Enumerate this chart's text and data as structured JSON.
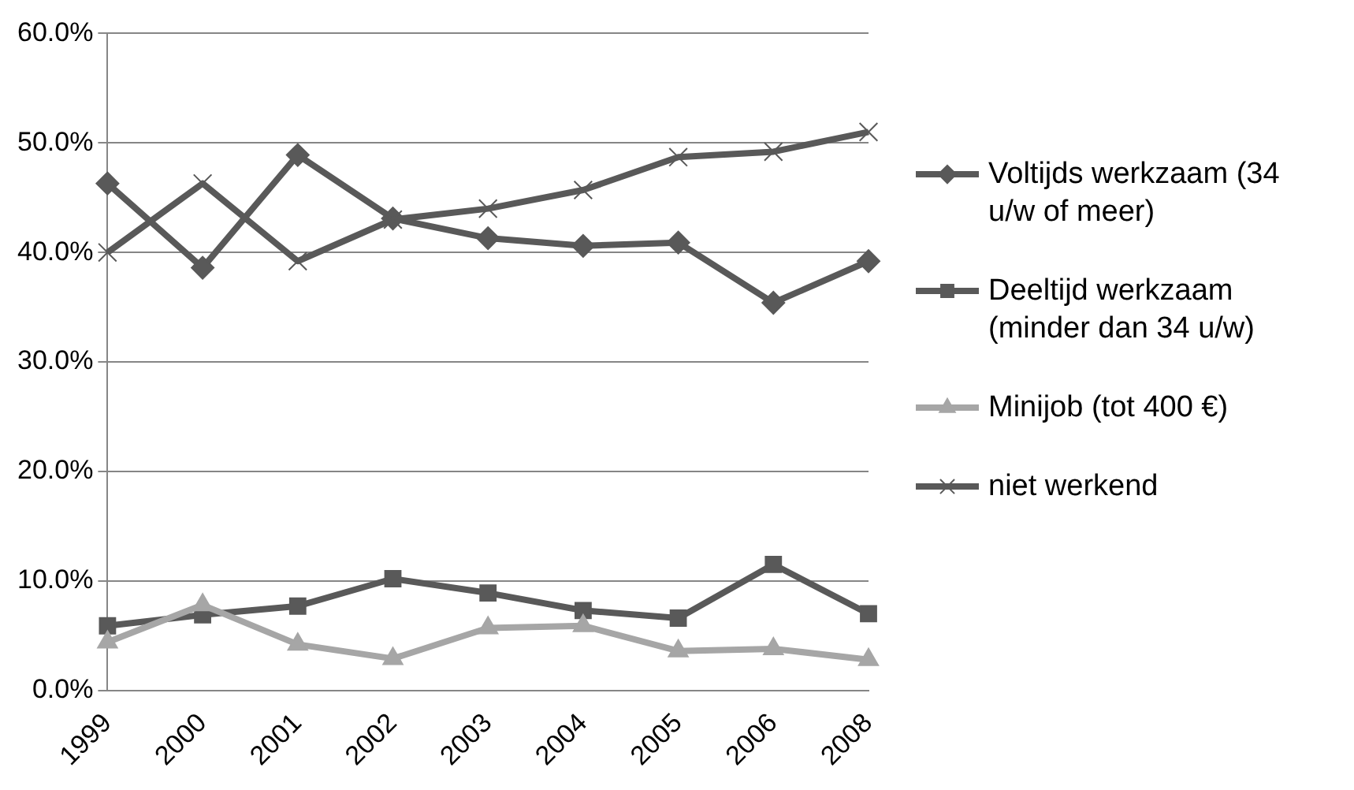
{
  "chart_data": {
    "type": "line",
    "categories": [
      "1999",
      "2000",
      "2001",
      "2002",
      "2003",
      "2004",
      "2005",
      "2006",
      "2008"
    ],
    "series": [
      {
        "name": "Voltijds werkzaam (34 u/w of meer)",
        "color": "#595959",
        "marker": "diamond",
        "values": [
          46.3,
          38.6,
          48.9,
          43.1,
          41.3,
          40.6,
          40.9,
          35.4,
          39.2
        ]
      },
      {
        "name": "Deeltijd werkzaam (minder dan 34 u/w)",
        "color": "#595959",
        "marker": "square",
        "values": [
          5.9,
          6.9,
          7.7,
          10.2,
          8.9,
          7.3,
          6.6,
          11.5,
          7.0
        ]
      },
      {
        "name": "Minijob (tot 400 €)",
        "color": "#a6a6a6",
        "marker": "triangle",
        "values": [
          4.4,
          7.8,
          4.2,
          2.9,
          5.7,
          5.9,
          3.6,
          3.8,
          2.8
        ]
      },
      {
        "name": "niet werkend",
        "color": "#595959",
        "marker": "cross",
        "values": [
          40.0,
          46.3,
          39.2,
          43.0,
          44.0,
          45.7,
          48.7,
          49.2,
          51.0
        ]
      }
    ],
    "ylim": [
      0,
      60
    ],
    "yticks": [
      {
        "value": 0,
        "label": "0.0%"
      },
      {
        "value": 10,
        "label": "10.0%"
      },
      {
        "value": 20,
        "label": "20.0%"
      },
      {
        "value": 30,
        "label": "30.0%"
      },
      {
        "value": 40,
        "label": "40.0%"
      },
      {
        "value": 50,
        "label": "50.0%"
      },
      {
        "value": 60,
        "label": "60.0%"
      }
    ],
    "grid": "y",
    "legend": "right"
  }
}
